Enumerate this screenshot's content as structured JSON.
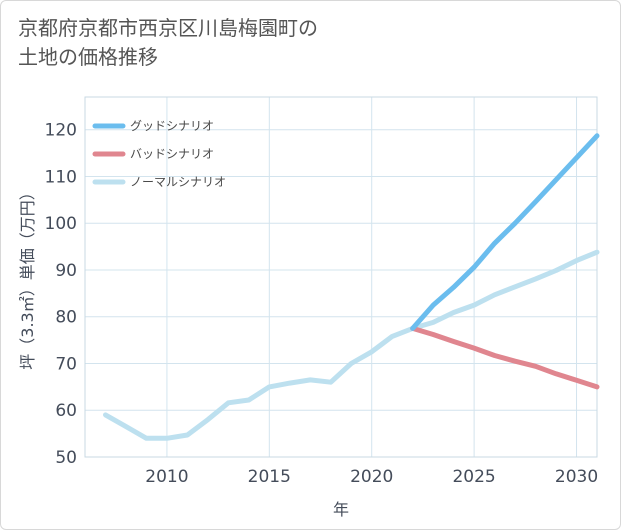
{
  "chart_data": {
    "type": "line",
    "title": "京都府京都市西京区川島梅園町の\n土地の価格推移",
    "xlabel": "年",
    "ylabel": "坪（3.3㎡）単価（万円）",
    "xlim": [
      2006,
      2031
    ],
    "ylim": [
      50,
      127
    ],
    "x_ticks": [
      2010,
      2015,
      2020,
      2025,
      2030
    ],
    "y_ticks": [
      50,
      60,
      70,
      80,
      90,
      100,
      110,
      120
    ],
    "grid": true,
    "legend_position": "top-left",
    "series": [
      {
        "name": "グッドシナリオ",
        "color": "#6bbdee",
        "x": [
          2022,
          2023,
          2024,
          2025,
          2026,
          2027,
          2028,
          2029,
          2030,
          2031
        ],
        "values": [
          77.5,
          82.5,
          86.3,
          90.6,
          95.7,
          100.0,
          104.6,
          109.3,
          114.0,
          118.7
        ]
      },
      {
        "name": "バッドシナリオ",
        "color": "#e0868f",
        "x": [
          2022,
          2023,
          2024,
          2025,
          2026,
          2027,
          2028,
          2029,
          2030,
          2031
        ],
        "values": [
          77.5,
          76.2,
          74.7,
          73.3,
          71.7,
          70.5,
          69.4,
          67.8,
          66.4,
          65.0
        ]
      },
      {
        "name": "ノーマルシナリオ",
        "color": "#bde0ef",
        "x": [
          2007,
          2008,
          2009,
          2010,
          2011,
          2012,
          2013,
          2014,
          2015,
          2016,
          2017,
          2018,
          2019,
          2020,
          2021,
          2022,
          2023,
          2024,
          2025,
          2026,
          2027,
          2028,
          2029,
          2030,
          2031
        ],
        "values": [
          59.0,
          56.5,
          54.0,
          54.0,
          54.7,
          58.0,
          61.6,
          62.2,
          65.0,
          65.8,
          66.5,
          66.0,
          70.0,
          72.5,
          75.8,
          77.5,
          78.8,
          80.9,
          82.5,
          84.7,
          86.4,
          88.1,
          89.9,
          92.0,
          93.8
        ]
      }
    ]
  }
}
